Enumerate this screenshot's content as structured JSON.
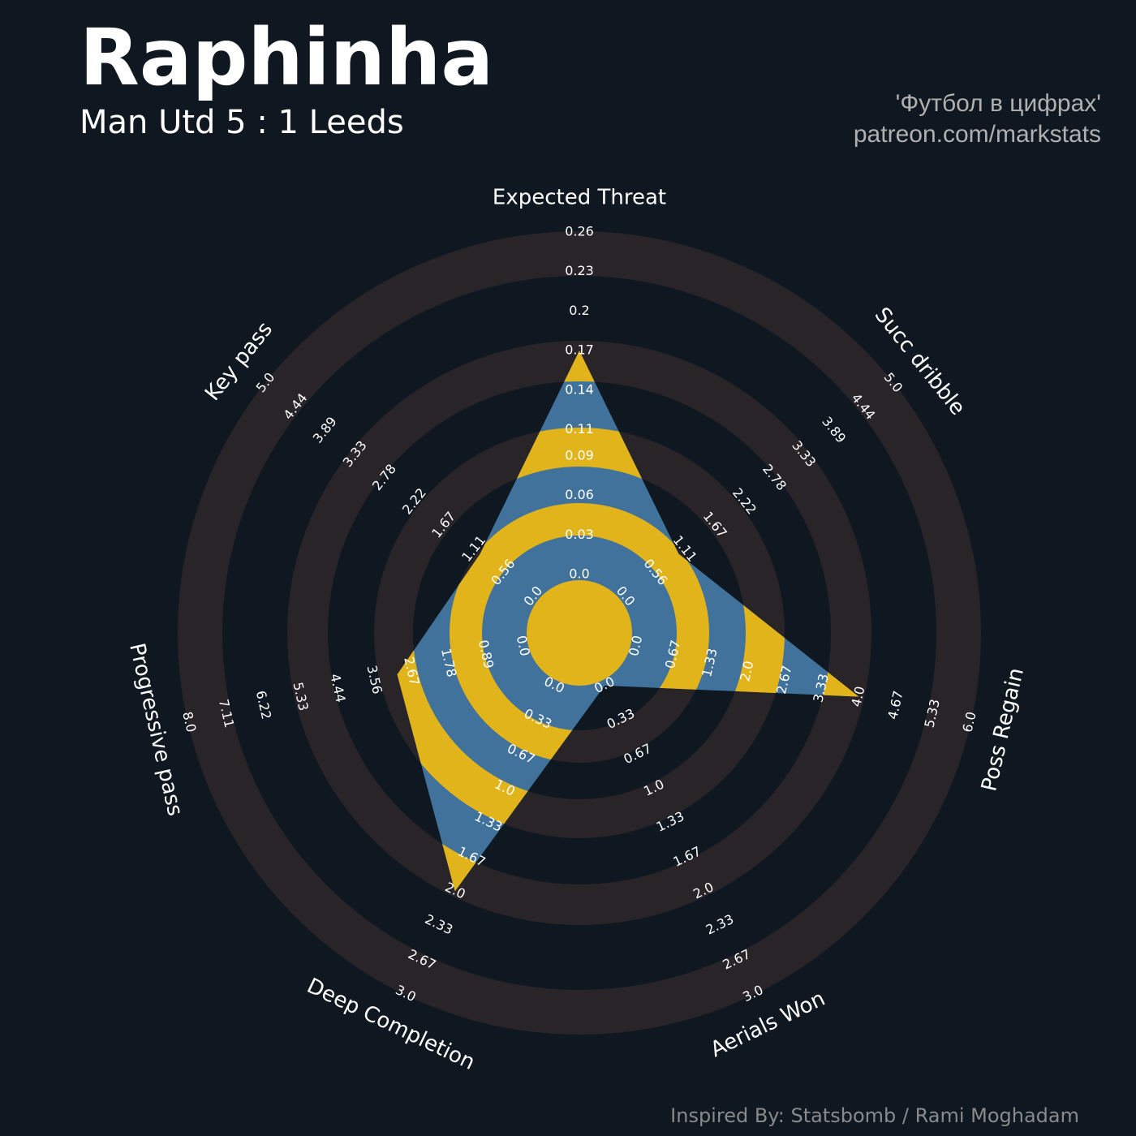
{
  "chart_data": {
    "type": "radar",
    "title": "Raphinha",
    "subtitle": "Man Utd 5 : 1 Leeds",
    "credits": [
      "'Футбол в цифрах'",
      "patreon.com/markstats"
    ],
    "footer": "Inspired By: Statsbomb / Rami Moghadam",
    "color": "#41729c",
    "highlight_color": "#e2b41b",
    "ring_color": "#282428",
    "background": "#0f1820",
    "axes": [
      {
        "name": "Expected Threat",
        "value": 0.17,
        "lim": [
          0,
          0.26
        ],
        "ticks": [
          {
            "value": 0,
            "label": "0.0"
          },
          0.03,
          0.06,
          0.09,
          0.11,
          0.14,
          0.17,
          0.2,
          0.23,
          0.26
        ]
      },
      {
        "name": "Succ dribble",
        "value": 1,
        "lim": [
          0,
          5
        ],
        "ticks": [
          {
            "value": 0,
            "label": "0.0"
          },
          0.56,
          1.11,
          1.67,
          2.22,
          2.78,
          3.33,
          3.89,
          4.44,
          {
            "value": 5,
            "label": "5.0"
          }
        ]
      },
      {
        "name": "Poss Regain",
        "value": 4,
        "lim": [
          0,
          6
        ],
        "ticks": [
          {
            "value": 0,
            "label": "0.0"
          },
          0.67,
          1.33,
          {
            "value": 2,
            "label": "2.0"
          },
          2.67,
          3.33,
          {
            "value": 4,
            "label": "4.0"
          },
          4.67,
          5.33,
          {
            "value": 6,
            "label": "6.0"
          }
        ]
      },
      {
        "name": "Aerials Won",
        "value": 0,
        "lim": [
          0,
          3
        ],
        "ticks": [
          {
            "value": 0,
            "label": "0.0"
          },
          0.33,
          0.67,
          {
            "value": 1,
            "label": "1.0"
          },
          1.33,
          1.67,
          {
            "value": 2,
            "label": "2.0"
          },
          2.33,
          2.67,
          {
            "value": 3,
            "label": "3.0"
          }
        ]
      },
      {
        "name": "Deep Completion",
        "value": 2,
        "lim": [
          0,
          3
        ],
        "ticks": [
          {
            "value": 0,
            "label": "0.0"
          },
          0.33,
          0.67,
          {
            "value": 1,
            "label": "1.0"
          },
          1.33,
          1.67,
          {
            "value": 2,
            "label": "2.0"
          },
          2.33,
          2.67,
          {
            "value": 3,
            "label": "3.0"
          }
        ]
      },
      {
        "name": "Progressive pass",
        "value": 3,
        "lim": [
          0,
          8
        ],
        "ticks": [
          {
            "value": 0,
            "label": "0.0"
          },
          0.89,
          1.78,
          2.67,
          3.56,
          4.44,
          5.33,
          6.22,
          7.11,
          {
            "value": 8,
            "label": "8.0"
          }
        ]
      },
      {
        "name": "Key pass",
        "value": 1,
        "lim": [
          0,
          5
        ],
        "ticks": [
          {
            "value": 0,
            "label": "0.0"
          },
          0.56,
          1.11,
          1.67,
          2.22,
          2.78,
          3.33,
          3.89,
          4.44,
          {
            "value": 5,
            "label": "5.0"
          }
        ]
      }
    ]
  }
}
